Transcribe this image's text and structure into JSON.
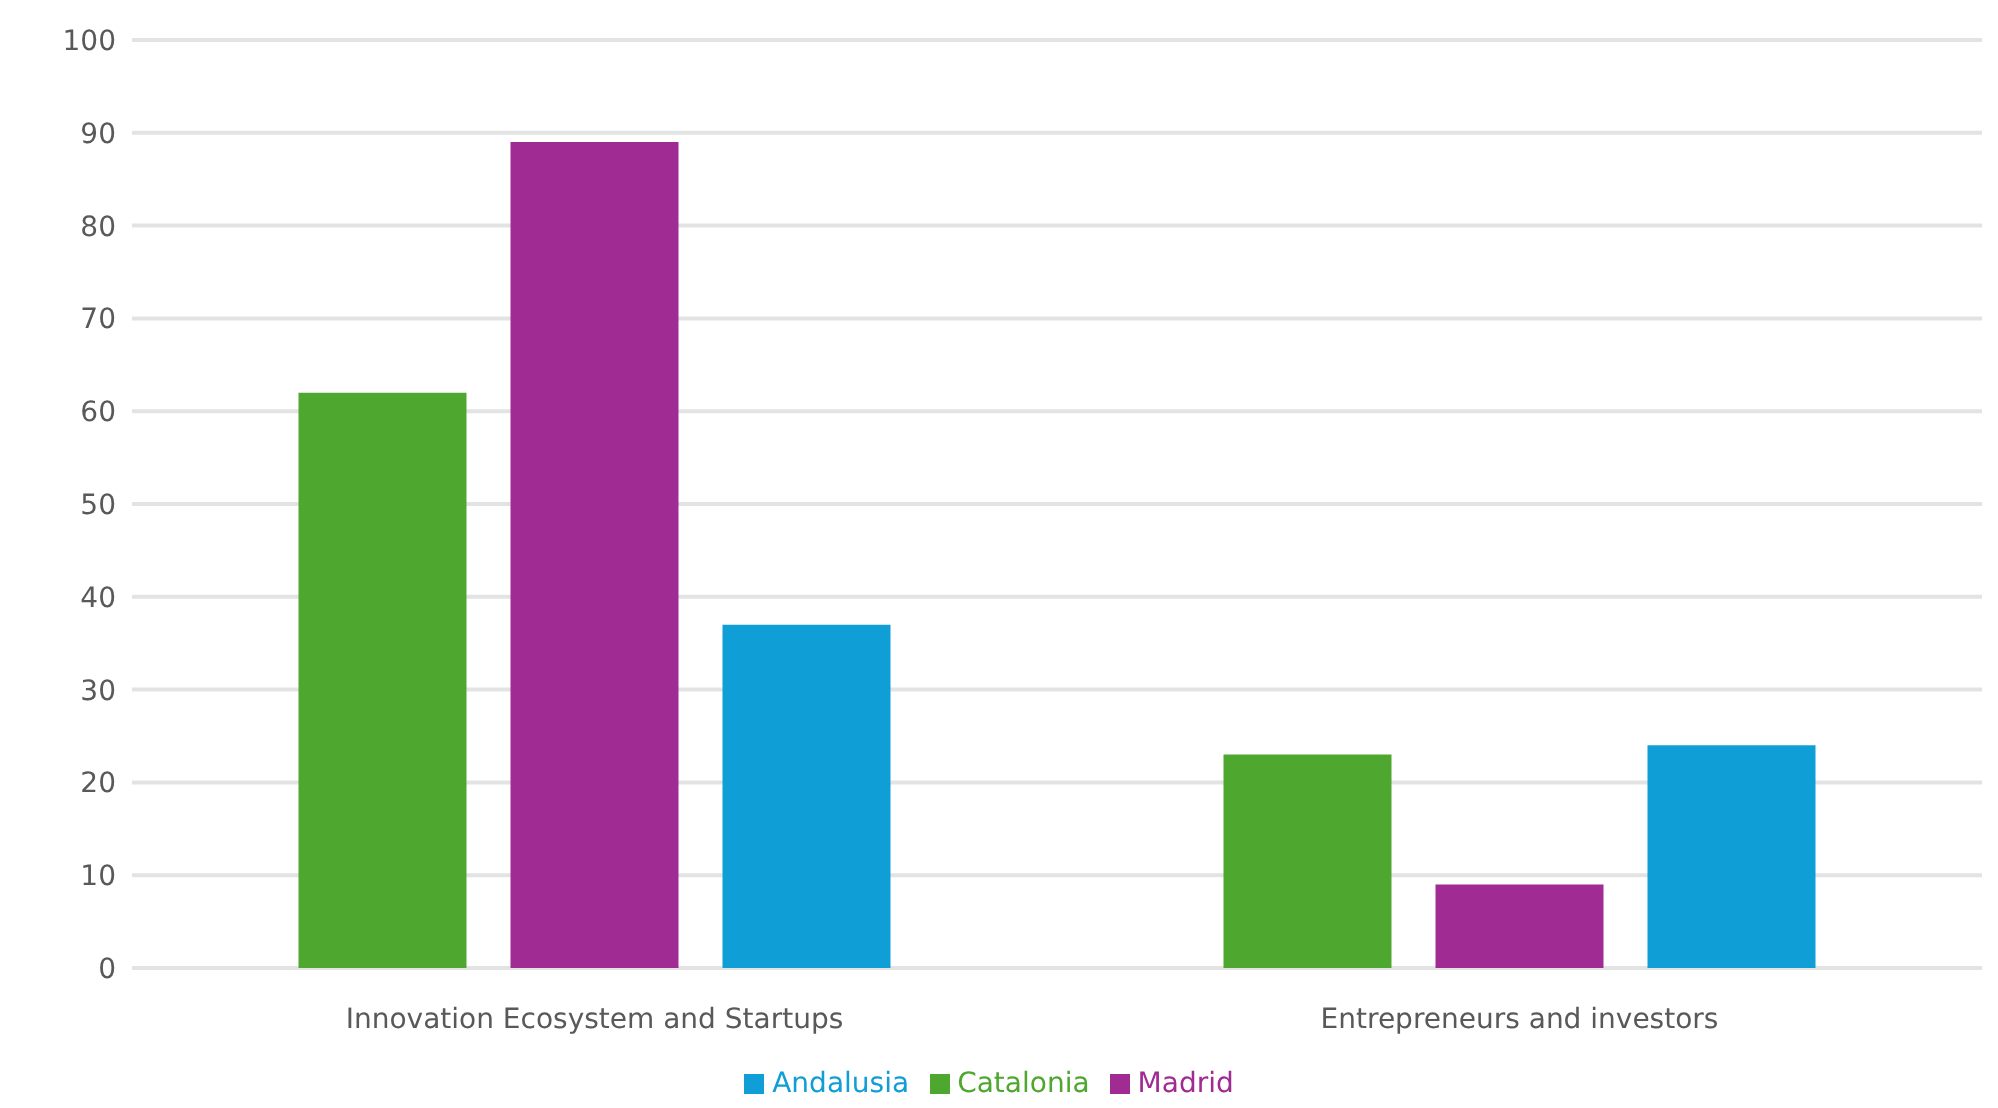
{
  "chart_data": {
    "type": "bar",
    "categories": [
      "Innovation Ecosystem and Startups",
      "Entrepreneurs and investors"
    ],
    "series": [
      {
        "name": "Catalonia",
        "color": "#4ea72e",
        "values": [
          62,
          23
        ]
      },
      {
        "name": "Madrid",
        "color": "#a02b93",
        "values": [
          89,
          9
        ]
      },
      {
        "name": "Andalusia",
        "color": "#0f9ed5",
        "values": [
          37,
          24
        ]
      }
    ],
    "ylim": [
      0,
      100
    ],
    "yticks": [
      0,
      10,
      20,
      30,
      40,
      50,
      60,
      70,
      80,
      90,
      100
    ],
    "grid": "y",
    "legend": "bottom"
  }
}
